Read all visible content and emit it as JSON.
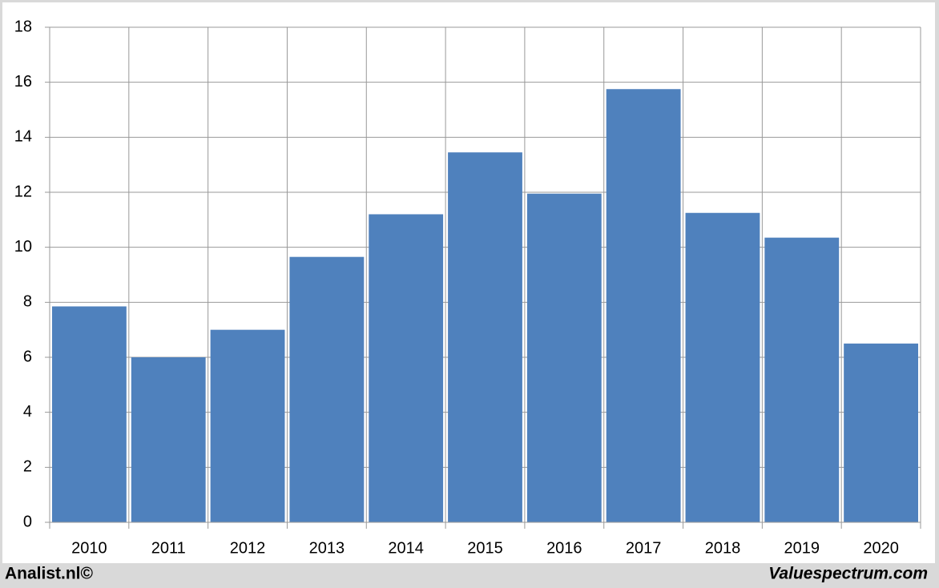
{
  "chart_data": {
    "type": "bar",
    "categories": [
      "2010",
      "2011",
      "2012",
      "2013",
      "2014",
      "2015",
      "2016",
      "2017",
      "2018",
      "2019",
      "2020"
    ],
    "values": [
      7.85,
      6.0,
      7.0,
      9.65,
      11.2,
      13.45,
      11.95,
      15.75,
      11.25,
      10.35,
      6.5
    ],
    "color": "#4f81bd",
    "ylim": [
      0,
      18
    ],
    "yticks": [
      0,
      2,
      4,
      6,
      8,
      10,
      12,
      14,
      16,
      18
    ],
    "grid": true,
    "credits": [
      "Analist.nl©",
      "Valuespectrum.com"
    ]
  }
}
